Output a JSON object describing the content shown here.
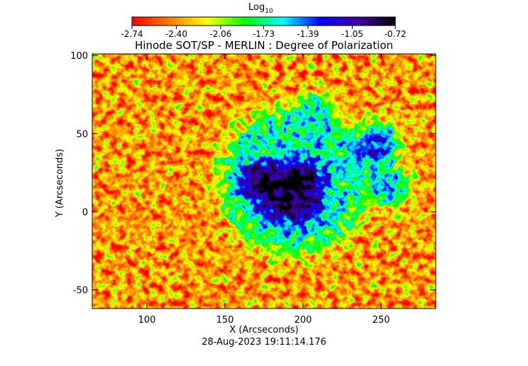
{
  "chart_data": {
    "type": "image",
    "title": "Hinode SOT/SP - MERLIN : Degree of Polarization",
    "x_label": "X (Arcseconds)",
    "y_label": "Y (Arcseconds)",
    "footer": "28-Aug-2023 19:11:14.176",
    "xlim": [
      65,
      285
    ],
    "ylim": [
      -62,
      101
    ],
    "xticks": [
      100,
      150,
      200,
      250
    ],
    "yticks": [
      -50,
      0,
      50,
      100
    ],
    "colormap": [
      "#ff0000",
      "#ff8000",
      "#ffff00",
      "#00ff00",
      "#00ffff",
      "#0000ff",
      "#4000a0",
      "#000000"
    ],
    "colorbar": {
      "label": "Log",
      "label_sub": "10",
      "lim": [
        -2.74,
        -0.72
      ],
      "ticks": [
        {
          "value": -2.74,
          "label": "-2.74"
        },
        {
          "value": -2.4,
          "label": "-2.40"
        },
        {
          "value": -2.06,
          "label": "-2.06"
        },
        {
          "value": -1.73,
          "label": "-1.73"
        },
        {
          "value": -1.39,
          "label": "-1.39"
        },
        {
          "value": -1.05,
          "label": "-1.05"
        },
        {
          "value": -0.72,
          "label": "-0.72"
        }
      ]
    }
  }
}
